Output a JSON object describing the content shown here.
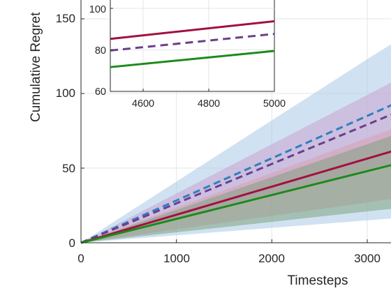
{
  "chart_data": [
    {
      "panel": "main",
      "type": "line",
      "xlabel": "Timesteps",
      "ylabel": "Cumulative Regret",
      "xlim": [
        0,
        5000
      ],
      "ylim": [
        0,
        160
      ],
      "x_ticks": [
        "0",
        "1000",
        "2000",
        "3000"
      ],
      "y_ticks": [
        "0",
        "50",
        "100",
        "150"
      ],
      "grid": true,
      "series": [
        {
          "style": "dashed",
          "color": "#2f7fbf",
          "band_color": "#a9cbe6",
          "x": [
            0,
            1000,
            2000,
            3000,
            3300
          ],
          "y": [
            0,
            28.3,
            56.6,
            85.0,
            93.5
          ],
          "band_low": [
            0,
            5,
            10,
            15,
            16.5
          ],
          "band_high": [
            0,
            41,
            82,
            123,
            135
          ]
        },
        {
          "style": "dashed",
          "color": "#6a3f8c",
          "band_color": "#c8a3cf",
          "x": [
            0,
            1000,
            2000,
            3000,
            3300
          ],
          "y": [
            0,
            26.4,
            52.8,
            79.2,
            87.1
          ],
          "band_low": [
            0,
            16,
            32,
            48,
            53
          ],
          "band_high": [
            0,
            33,
            66,
            99,
            109
          ]
        },
        {
          "style": "solid",
          "color": "#a3103f",
          "band_color": "#d9a0b3",
          "x": [
            0,
            1000,
            2000,
            3000,
            3300
          ],
          "y": [
            0,
            18.8,
            37.6,
            56.4,
            62.0
          ],
          "band_low": [
            0,
            9,
            18,
            27,
            30
          ],
          "band_high": [
            0,
            23.4,
            46.8,
            70.2,
            77.2
          ]
        },
        {
          "style": "solid",
          "color": "#1c8a1c",
          "band_color": "#7fa27f",
          "x": [
            0,
            1000,
            2000,
            3000,
            3300
          ],
          "y": [
            0,
            16.0,
            32.0,
            48.0,
            52.8
          ],
          "band_low": [
            0,
            7,
            14,
            21,
            23
          ],
          "band_high": [
            0,
            22,
            44,
            66,
            72.6
          ]
        }
      ]
    },
    {
      "panel": "inset",
      "type": "line",
      "xlim": [
        4500,
        5000
      ],
      "ylim": [
        60,
        110
      ],
      "x_ticks": [
        "4600",
        "4800",
        "5000"
      ],
      "y_ticks": [
        "60",
        "80",
        "100"
      ],
      "grid": true,
      "series": [
        {
          "style": "solid",
          "color": "#a3103f",
          "x": [
            4500,
            5000
          ],
          "y": [
            85.3,
            93.8
          ]
        },
        {
          "style": "dashed",
          "color": "#6a3f8c",
          "x": [
            4500,
            5000
          ],
          "y": [
            79.7,
            87.7
          ]
        },
        {
          "style": "solid",
          "color": "#1c8a1c",
          "x": [
            4500,
            5000
          ],
          "y": [
            71.7,
            79.5
          ]
        }
      ]
    }
  ]
}
